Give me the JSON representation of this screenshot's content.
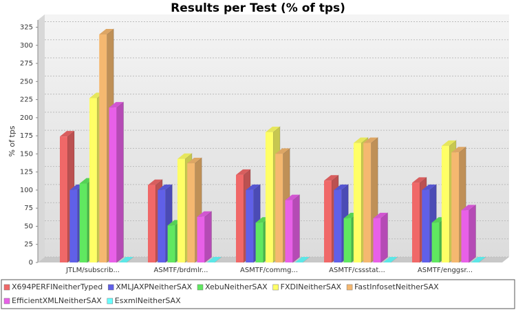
{
  "chart_data": {
    "type": "bar",
    "title": "Results per Test (% of tps)",
    "y_label": "% of tps",
    "categories": [
      "JTLM/subscrib...",
      "ASMTF/brdmlr...",
      "ASMTF/commg...",
      "ASMTF/cssstat...",
      "ASMTF/enggsr..."
    ],
    "series": [
      {
        "name": "X694PERFINeitherTyped",
        "color": "#f06868",
        "values": [
          174,
          107,
          121,
          113,
          110
        ]
      },
      {
        "name": "XMLJAXPNeitherSAX",
        "color": "#6060e8",
        "values": [
          100,
          100,
          100,
          100,
          100
        ]
      },
      {
        "name": "XebuNeitherSAX",
        "color": "#60e860",
        "values": [
          109,
          51,
          55,
          61,
          55
        ]
      },
      {
        "name": "FXDINeitherSAX",
        "color": "#ffff66",
        "values": [
          227,
          143,
          180,
          165,
          161
        ]
      },
      {
        "name": "FastInfosetNeitherSAX",
        "color": "#f5b870",
        "values": [
          315,
          137,
          150,
          165,
          152
        ]
      },
      {
        "name": "EfficientXMLNeitherSAX",
        "color": "#e860e8",
        "values": [
          214,
          63,
          86,
          61,
          72
        ]
      },
      {
        "name": "EsxmlNeitherSAX",
        "color": "#66ffff",
        "values": [
          0,
          0,
          0,
          0,
          0
        ]
      }
    ],
    "ylim": [
      0,
      335
    ],
    "yticks": [
      0,
      25,
      50,
      75,
      100,
      125,
      150,
      175,
      200,
      225,
      250,
      275,
      300,
      325
    ],
    "grid": true
  }
}
